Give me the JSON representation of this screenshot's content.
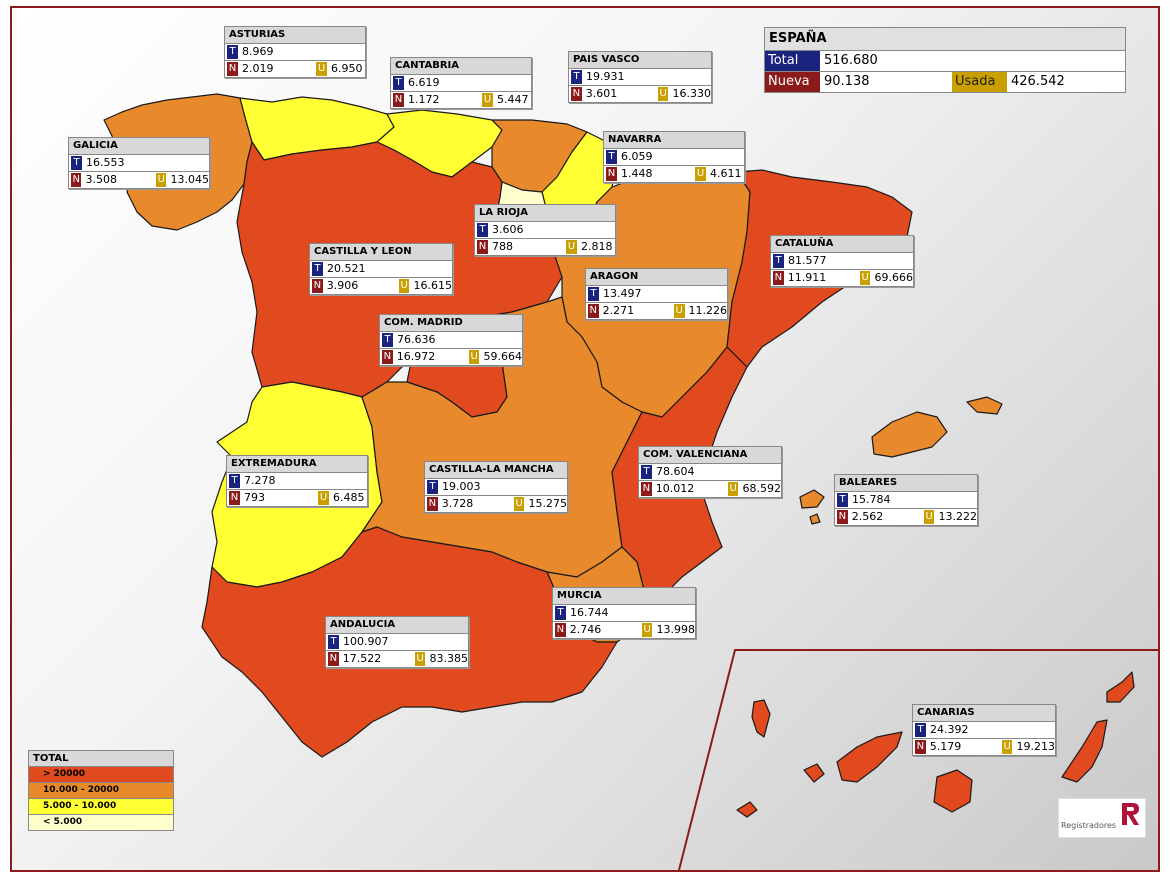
{
  "spain": {
    "title": "ESPAÑA",
    "total_label": "Total",
    "total": "516.680",
    "nueva_label": "Nueva",
    "nueva": "90.138",
    "usada_label": "Usada",
    "usada": "426.542"
  },
  "keys": {
    "t": "T",
    "n": "N",
    "u": "U"
  },
  "legend": {
    "title": "TOTAL",
    "items": [
      {
        "label": "> 20000",
        "color": "#e04a1e"
      },
      {
        "label": "10.000 - 20000",
        "color": "#e88a2c"
      },
      {
        "label": "5.000 - 10.000",
        "color": "#ffff33"
      },
      {
        "label": "< 5.000",
        "color": "#ffffcc"
      }
    ]
  },
  "regions": {
    "asturias": {
      "name": "ASTURIAS",
      "t": "8.969",
      "n": "2.019",
      "u": "6.950"
    },
    "cantabria": {
      "name": "CANTABRIA",
      "t": "6.619",
      "n": "1.172",
      "u": "5.447"
    },
    "pais_vasco": {
      "name": "PAIS VASCO",
      "t": "19.931",
      "n": "3.601",
      "u": "16.330"
    },
    "galicia": {
      "name": "GALICIA",
      "t": "16.553",
      "n": "3.508",
      "u": "13.045"
    },
    "navarra": {
      "name": "NAVARRA",
      "t": "6.059",
      "n": "1.448",
      "u": "4.611"
    },
    "la_rioja": {
      "name": "LA RIOJA",
      "t": "3.606",
      "n": "788",
      "u": "2.818"
    },
    "castilla_leon": {
      "name": "CASTILLA Y LEON",
      "t": "20.521",
      "n": "3.906",
      "u": "16.615"
    },
    "cataluna": {
      "name": "CATALUÑA",
      "t": "81.577",
      "n": "11.911",
      "u": "69.666"
    },
    "aragon": {
      "name": "ARAGON",
      "t": "13.497",
      "n": "2.271",
      "u": "11.226"
    },
    "madrid": {
      "name": "COM. MADRID",
      "t": "76.636",
      "n": "16.972",
      "u": "59.664"
    },
    "extremadura": {
      "name": "EXTREMADURA",
      "t": "7.278",
      "n": "793",
      "u": "6.485"
    },
    "castilla_mancha": {
      "name": "CASTILLA-LA MANCHA",
      "t": "19.003",
      "n": "3.728",
      "u": "15.275"
    },
    "valenciana": {
      "name": "COM. VALENCIANA",
      "t": "78.604",
      "n": "10.012",
      "u": "68.592"
    },
    "baleares": {
      "name": "BALEARES",
      "t": "15.784",
      "n": "2.562",
      "u": "13.222"
    },
    "murcia": {
      "name": "MURCIA",
      "t": "16.744",
      "n": "2.746",
      "u": "13.998"
    },
    "andalucia": {
      "name": "ANDALUCIA",
      "t": "100.907",
      "n": "17.522",
      "u": "83.385"
    },
    "canarias": {
      "name": "CANARIAS",
      "t": "24.392",
      "n": "5.179",
      "u": "19.213"
    }
  },
  "logo": {
    "text": "Registradores"
  }
}
